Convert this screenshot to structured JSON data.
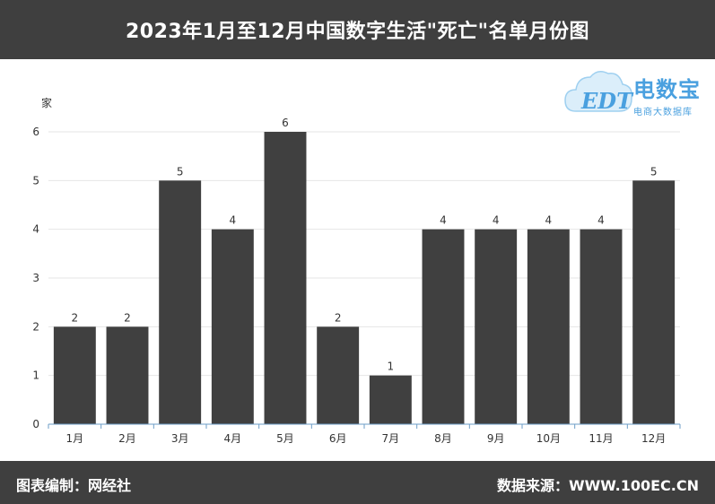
{
  "header": {
    "title": "2023年1月至12月中国数字生活\"死亡\"名单月份图"
  },
  "footer": {
    "left": "图表编制：网经社",
    "right": "数据来源：WWW.100EC.CN"
  },
  "logo": {
    "brand": "电数宝",
    "tagline": "电商大数据库",
    "mark": "EDT",
    "icon": "cloud-logo-icon"
  },
  "colors": {
    "bar": "#404040",
    "header_bg": "#3f3f3f",
    "grid": "#e6e6e6",
    "axis": "#6e9ec7",
    "logo": "#4aa0df"
  },
  "chart_data": {
    "type": "bar",
    "categories": [
      "1月",
      "2月",
      "3月",
      "4月",
      "5月",
      "6月",
      "7月",
      "8月",
      "9月",
      "10月",
      "11月",
      "12月"
    ],
    "values": [
      2,
      2,
      5,
      4,
      6,
      2,
      1,
      4,
      4,
      4,
      4,
      5
    ],
    "ylabel": "家",
    "ylim": [
      0,
      6
    ],
    "yticks": [
      0,
      1,
      2,
      3,
      4,
      5,
      6
    ],
    "grid": true,
    "data_labels": true
  }
}
